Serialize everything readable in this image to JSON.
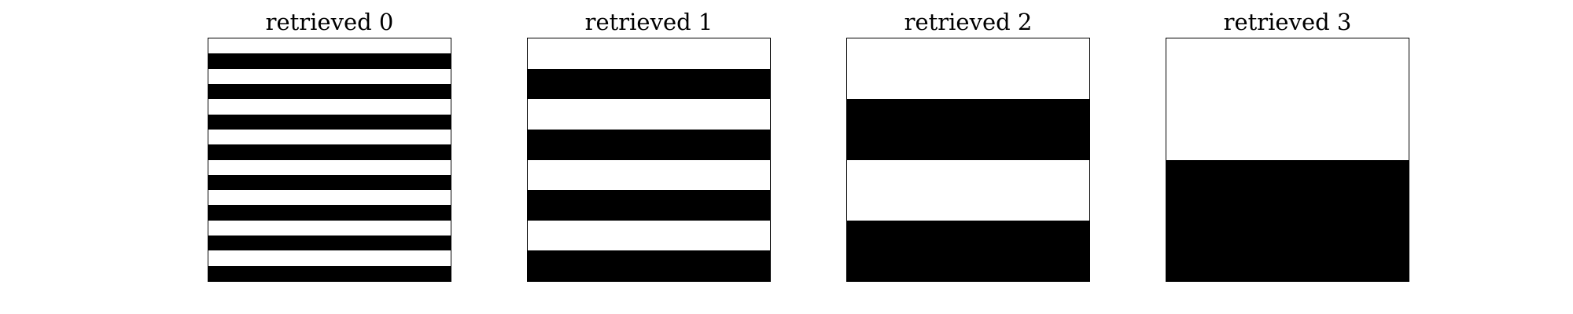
{
  "colors": {
    "background": "#ffffff",
    "stripe_light": "#ffffff",
    "stripe_dark": "#000000",
    "border": "#000000"
  },
  "panels": [
    {
      "title": "retrieved 0",
      "stripe_count": 16,
      "first_stripe": "light"
    },
    {
      "title": "retrieved 1",
      "stripe_count": 8,
      "first_stripe": "light"
    },
    {
      "title": "retrieved 2",
      "stripe_count": 4,
      "first_stripe": "light"
    },
    {
      "title": "retrieved 3",
      "stripe_count": 2,
      "first_stripe": "light"
    }
  ]
}
